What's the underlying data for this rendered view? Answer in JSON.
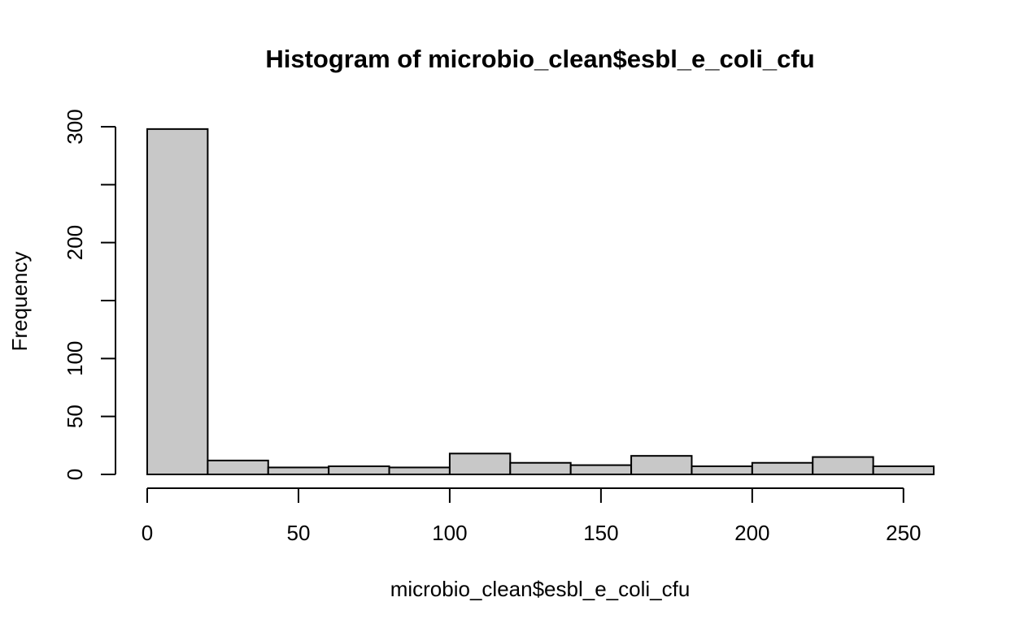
{
  "chart_data": {
    "type": "bar",
    "title": "Histogram of microbio_clean$esbl_e_coli_cfu",
    "xlabel": "microbio_clean$esbl_e_coli_cfu",
    "ylabel": "Frequency",
    "bin_edges": [
      0,
      20,
      40,
      60,
      80,
      100,
      120,
      140,
      160,
      180,
      200,
      220,
      240,
      260
    ],
    "counts": [
      298,
      12,
      6,
      7,
      6,
      18,
      10,
      8,
      16,
      7,
      10,
      15,
      7
    ],
    "xlim": [
      0,
      260
    ],
    "ylim": [
      0,
      300
    ],
    "x_ticks": [
      0,
      50,
      100,
      150,
      200,
      250
    ],
    "y_ticks": [
      0,
      50,
      100,
      200,
      300
    ],
    "y_minor_ticks": [
      150,
      250
    ],
    "bar_color": "#c8c8c8",
    "grid": false
  }
}
